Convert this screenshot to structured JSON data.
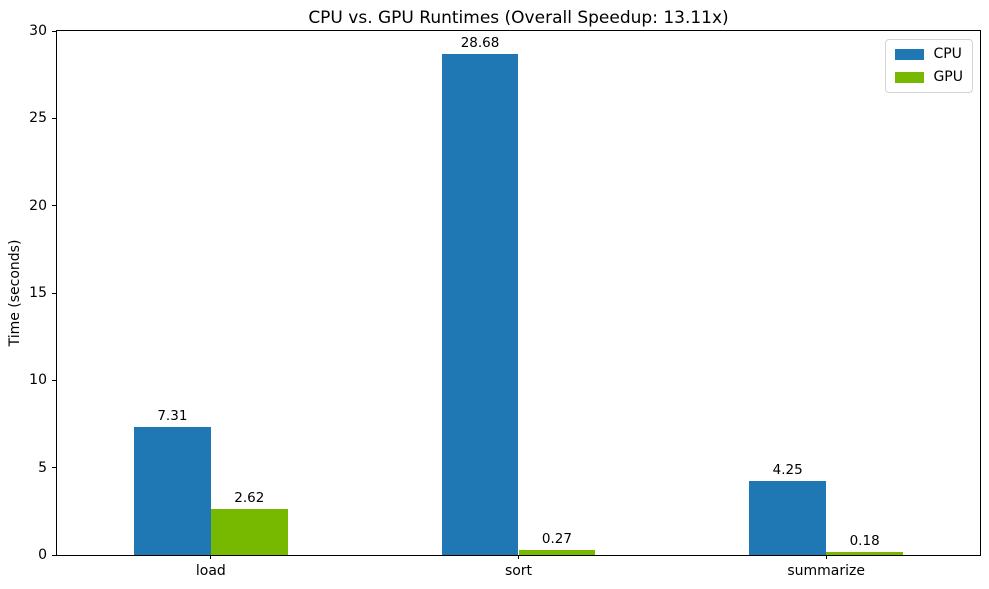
{
  "chart_data": {
    "type": "bar",
    "title": "CPU vs. GPU Runtimes (Overall Speedup: 13.11x)",
    "xlabel": "",
    "ylabel": "Time (seconds)",
    "categories": [
      "load",
      "sort",
      "summarize"
    ],
    "series": [
      {
        "name": "CPU",
        "color": "#1f77b4",
        "values": [
          7.31,
          28.68,
          4.25
        ]
      },
      {
        "name": "GPU",
        "color": "#76b900",
        "values": [
          2.62,
          0.27,
          0.18
        ]
      }
    ],
    "value_labels": [
      "7.31",
      "28.68",
      "4.25",
      "2.62",
      "0.27",
      "0.18"
    ],
    "ylim": [
      0,
      30
    ],
    "yticks": [
      0,
      5,
      10,
      15,
      20,
      25,
      30
    ],
    "bar_width_fraction": 0.25,
    "grid": false,
    "legend_position": "upper right",
    "spine_color": "#000000",
    "background_color": "#ffffff"
  }
}
